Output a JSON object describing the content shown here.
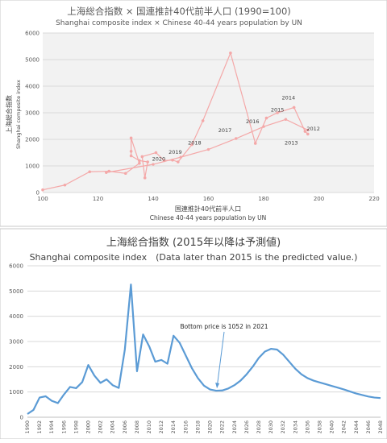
{
  "chart_data": [
    {
      "type": "scatter",
      "title": "上海総合指数 × 国連推計40代前半人口 (1990=100)",
      "subtitle": "Shanghai composite index × Chinese 40-44 years population by UN",
      "xlabel": "国連推計40代前半人口",
      "xlabel_en": "Chinese 40-44 years population by UN",
      "ylabel": "上海総合指数",
      "ylabel_en": "Shanghai composite index",
      "xlim": [
        100,
        220
      ],
      "ylim": [
        0,
        6000
      ],
      "xticks": [
        100,
        120,
        140,
        160,
        180,
        200,
        220
      ],
      "yticks": [
        0,
        1000,
        2000,
        3000,
        4000,
        5000,
        6000
      ],
      "grid": "horizontal",
      "color": "#f4a8a8",
      "points": [
        {
          "x": 100,
          "y": 100
        },
        {
          "x": 108,
          "y": 280
        },
        {
          "x": 117,
          "y": 780
        },
        {
          "x": 124,
          "y": 800
        },
        {
          "x": 130,
          "y": 720
        },
        {
          "x": 135,
          "y": 1100
        },
        {
          "x": 132,
          "y": 2050
        },
        {
          "x": 132,
          "y": 1550
        },
        {
          "x": 132,
          "y": 1380
        },
        {
          "x": 135,
          "y": 1200
        },
        {
          "x": 138,
          "y": 1150
        },
        {
          "x": 137,
          "y": 550
        },
        {
          "x": 136,
          "y": 1350
        },
        {
          "x": 141,
          "y": 1500
        },
        {
          "x": 144,
          "y": 1200
        },
        {
          "x": 147,
          "y": 1220
        },
        {
          "x": 149,
          "y": 1150
        },
        {
          "x": 154,
          "y": 1800
        },
        {
          "x": 158,
          "y": 2700
        },
        {
          "x": 168,
          "y": 5250
        },
        {
          "x": 177,
          "y": 1850
        },
        {
          "x": 181,
          "y": 2800
        },
        {
          "x": 185,
          "y": 3000
        },
        {
          "x": 191,
          "y": 3200
        },
        {
          "x": 195,
          "y": 2300
        },
        {
          "x": 196,
          "y": 2200
        }
      ],
      "trend": [
        {
          "x": 123,
          "y": 750
        },
        {
          "x": 140,
          "y": 1060
        },
        {
          "x": 150,
          "y": 1330
        },
        {
          "x": 160,
          "y": 1620
        },
        {
          "x": 170,
          "y": 2030
        },
        {
          "x": 180,
          "y": 2480
        },
        {
          "x": 188,
          "y": 2750
        },
        {
          "x": 196,
          "y": 2350
        }
      ],
      "annotations": [
        {
          "text": "2020",
          "x": 142,
          "y": 1200
        },
        {
          "text": "2019",
          "x": 148,
          "y": 1450
        },
        {
          "text": "2018",
          "x": 155,
          "y": 1800
        },
        {
          "text": "2017",
          "x": 166,
          "y": 2270
        },
        {
          "text": "2016",
          "x": 176,
          "y": 2600
        },
        {
          "text": "2015",
          "x": 185,
          "y": 3050
        },
        {
          "text": "2014",
          "x": 189,
          "y": 3500
        },
        {
          "text": "2013",
          "x": 190,
          "y": 1800
        },
        {
          "text": "2012",
          "x": 198,
          "y": 2330
        }
      ]
    },
    {
      "type": "line",
      "title": "上海総合指数 (2015年以降は予測値)",
      "subtitle": "Shanghai composite index　(Data later than 2015 is the predicted value.)",
      "ylim": [
        0,
        6000
      ],
      "yticks": [
        0,
        1000,
        2000,
        3000,
        4000,
        5000,
        6000
      ],
      "xlim": [
        1990,
        2048
      ],
      "xticks": [
        1990,
        1992,
        1994,
        1996,
        1998,
        2000,
        2002,
        2004,
        2006,
        2008,
        2010,
        2012,
        2014,
        2016,
        2018,
        2020,
        2022,
        2024,
        2026,
        2028,
        2030,
        2032,
        2034,
        2036,
        2038,
        2040,
        2042,
        2044,
        2046,
        2048
      ],
      "grid": "horizontal",
      "color": "#5b9bd5",
      "x": [
        1990,
        1991,
        1992,
        1993,
        1994,
        1995,
        1996,
        1997,
        1998,
        1999,
        2000,
        2001,
        2002,
        2003,
        2004,
        2005,
        2006,
        2007,
        2008,
        2009,
        2010,
        2011,
        2012,
        2013,
        2014,
        2015,
        2016,
        2017,
        2018,
        2019,
        2020,
        2021,
        2022,
        2023,
        2024,
        2025,
        2026,
        2027,
        2028,
        2029,
        2030,
        2031,
        2032,
        2033,
        2034,
        2035,
        2036,
        2037,
        2038,
        2039,
        2040,
        2041,
        2042,
        2043,
        2044,
        2045,
        2046,
        2047,
        2048
      ],
      "values": [
        128,
        290,
        780,
        830,
        650,
        560,
        900,
        1200,
        1150,
        1390,
        2070,
        1650,
        1360,
        1500,
        1270,
        1160,
        2680,
        5260,
        1820,
        3280,
        2810,
        2200,
        2270,
        2120,
        3230,
        2950,
        2450,
        1950,
        1550,
        1250,
        1100,
        1052,
        1060,
        1140,
        1270,
        1450,
        1700,
        2000,
        2350,
        2600,
        2710,
        2680,
        2480,
        2200,
        1920,
        1700,
        1550,
        1450,
        1380,
        1310,
        1240,
        1170,
        1100,
        1020,
        940,
        880,
        820,
        780,
        760
      ],
      "annotation": {
        "text": "Bottom price is 1052  in 2021",
        "x": 2021,
        "y": 1052
      }
    }
  ]
}
